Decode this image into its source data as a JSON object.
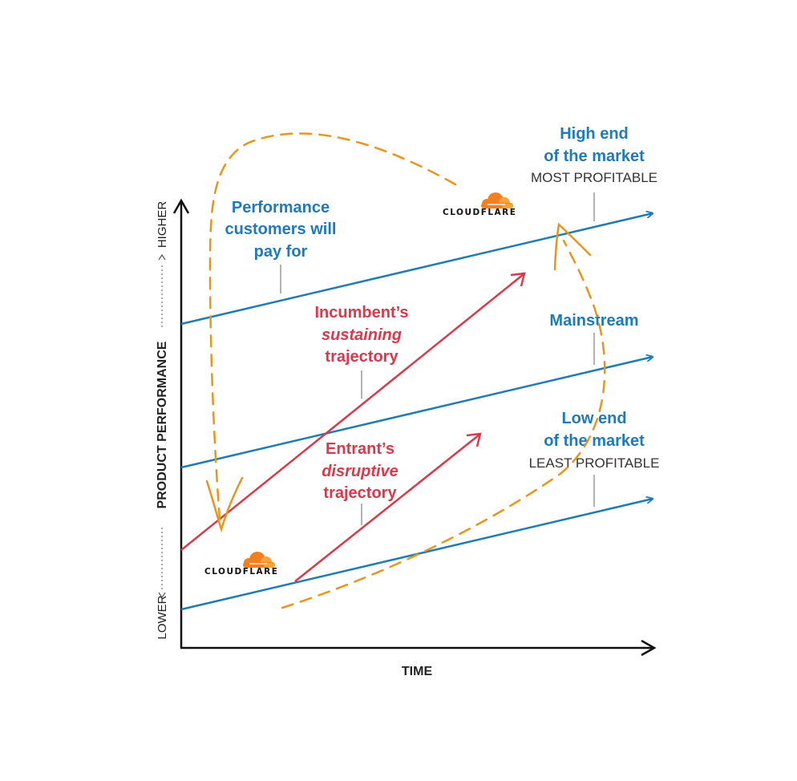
{
  "diagram": {
    "x_axis_label": "TIME",
    "y_axis_label": "PRODUCT PERFORMANCE",
    "y_axis_low": "LOWER",
    "y_axis_high": "HIGHER",
    "performance_label": [
      "Performance",
      "customers will",
      "pay for"
    ],
    "high_end": {
      "line1": "High end",
      "line2": "of the market",
      "caption": "MOST PROFITABLE"
    },
    "mainstream": "Mainstream",
    "low_end": {
      "line1": "Low end",
      "line2": "of the market",
      "caption": "LEAST PROFITABLE"
    },
    "incumbent": {
      "line1": "Incumbent’s",
      "line2": "sustaining",
      "line3": "trajectory"
    },
    "entrant": {
      "line1": "Entrant’s",
      "line2": "disruptive",
      "line3": "trajectory"
    },
    "logo_text": "CLOUDFLARE"
  },
  "colors": {
    "blue": "#1f7ab8",
    "red": "#d8394b",
    "orange": "#e8951c",
    "axis": "#111111"
  }
}
